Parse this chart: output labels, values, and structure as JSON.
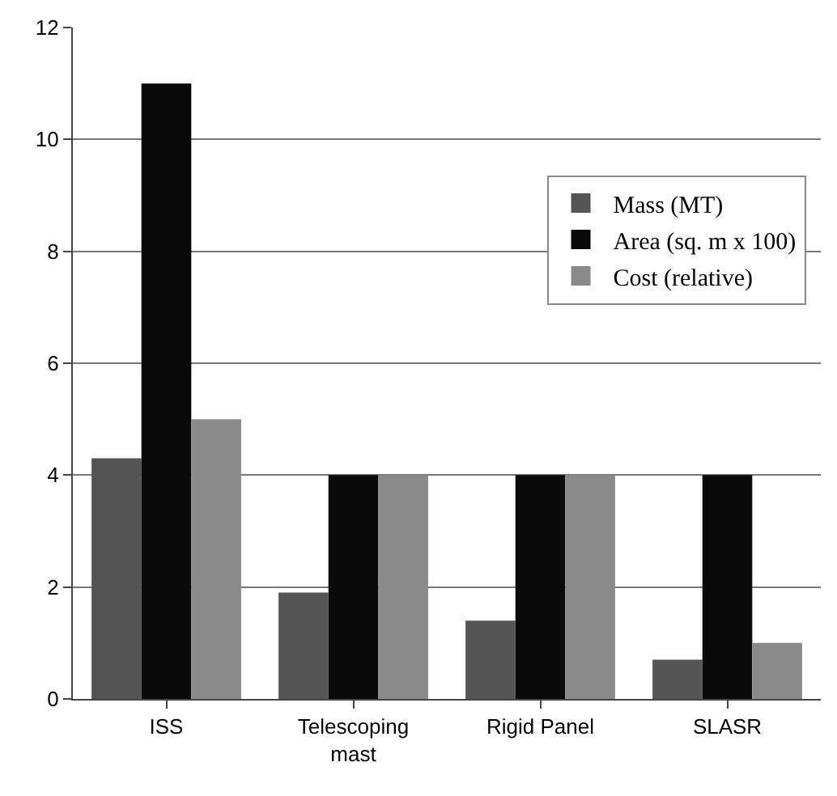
{
  "chart_data": {
    "type": "bar",
    "categories": [
      "ISS",
      "Telescoping mast",
      "Rigid Panel",
      "SLASR"
    ],
    "series": [
      {
        "name": "Mass (MT)",
        "color": "#555555",
        "values": [
          4.3,
          1.9,
          1.4,
          0.7
        ]
      },
      {
        "name": "Area (sq. m x 100)",
        "color": "#0a0a0a",
        "values": [
          11,
          4,
          4,
          4
        ]
      },
      {
        "name": "Cost (relative)",
        "color": "#8a8a8a",
        "values": [
          5,
          4,
          4,
          1
        ]
      }
    ],
    "ylim": [
      0,
      12
    ],
    "yticks": [
      0,
      2,
      4,
      6,
      8,
      10,
      12
    ],
    "grid": "y",
    "legend": "top right"
  }
}
